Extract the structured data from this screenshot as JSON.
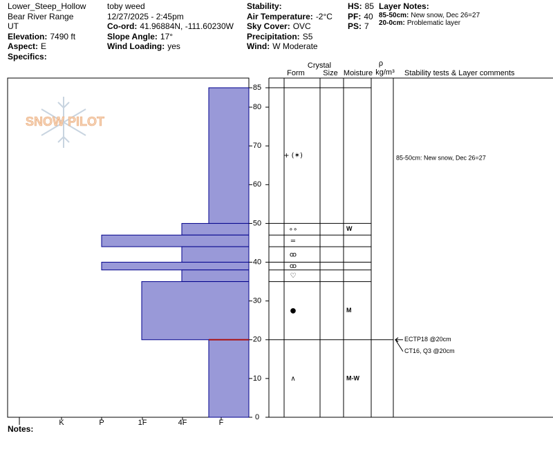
{
  "header": {
    "columns": [
      [
        {
          "value": "Lower_Steep_Hollow"
        },
        {
          "value": "Bear River Range"
        },
        {
          "value": "UT"
        },
        {
          "label": "Elevation:",
          "value": "7490 ft"
        },
        {
          "label": "Aspect:",
          "value": "E"
        },
        {
          "label": "Specifics:"
        }
      ],
      [
        {
          "value": "toby weed"
        },
        {
          "value": "12/27/2025 - 2:45pm"
        },
        {
          "label": "Co-ord:",
          "value": "41.96884N, -111.60230W"
        },
        {
          "label": "Slope Angle:",
          "value": "17°"
        },
        {
          "label": "Wind Loading:",
          "value": "yes"
        }
      ],
      [
        {
          "label": "Stability:"
        },
        {
          "label": "Air Temperature:",
          "value": "-2°C"
        },
        {
          "label": "Sky Cover:",
          "value": "OVC"
        },
        {
          "label": "Precipitation:",
          "value": "S5"
        },
        {
          "label": "Wind:",
          "value": "W Moderate"
        }
      ],
      [
        {
          "label": "HS:",
          "value": "85"
        },
        {
          "label": "PF:",
          "value": "40"
        },
        {
          "label": "PS:",
          "value": "7"
        }
      ]
    ],
    "layer_notes_title": "Layer Notes:",
    "layer_notes": [
      {
        "label": "85-50cm:",
        "value": "New snow, Dec 26=27"
      },
      {
        "label": "20-0cm:",
        "value": "Problematic layer"
      }
    ]
  },
  "chart_data": {
    "type": "snow-profile",
    "watermark": "SNOW PILOT",
    "hardness_categories": [
      "I",
      "K",
      "P",
      "1F",
      "4F",
      "F"
    ],
    "ylim": [
      0,
      87.5
    ],
    "yticks": [
      0,
      10,
      20,
      30,
      40,
      50,
      60,
      70,
      80,
      85
    ],
    "bar_color": "#9999d8",
    "columns": {
      "crystal": "Crystal",
      "form": "Form",
      "size": "Size",
      "moisture": "Moisture",
      "rho": "ρ",
      "rho_unit": "kg/m³",
      "comments": "Stability tests & Layer comments"
    },
    "layers": [
      {
        "top": 85,
        "bottom": 50,
        "hardness": "F",
        "form": "+ (✶)",
        "moisture": null,
        "comment": "85-50cm: New snow, Dec 26=27"
      },
      {
        "top": 50,
        "bottom": 47,
        "hardness": "4F",
        "form": "∘∘",
        "moisture": "W",
        "comment": null
      },
      {
        "top": 47,
        "bottom": 44,
        "hardness": "P",
        "form": "=",
        "moisture": null,
        "comment": null
      },
      {
        "top": 44,
        "bottom": 40,
        "hardness": "4F",
        "form": "ꝏ",
        "moisture": null,
        "comment": null
      },
      {
        "top": 40,
        "bottom": 38,
        "hardness": "P",
        "form": "ꝏ",
        "moisture": null,
        "comment": null
      },
      {
        "top": 38,
        "bottom": 35,
        "hardness": "4F",
        "form": "♡",
        "moisture": null,
        "comment": null
      },
      {
        "top": 35,
        "bottom": 20,
        "hardness": "1F",
        "form": "●",
        "moisture": "M",
        "comment": null
      },
      {
        "top": 20,
        "bottom": 0,
        "hardness": "F",
        "form": "∧",
        "moisture": "M-W",
        "comment": null
      }
    ],
    "critical_layer": {
      "depth": 20,
      "color": "#aa1111"
    },
    "stability_tests": [
      {
        "text": "ECTP18 @20cm",
        "depth": 20
      },
      {
        "text": "CT16, Q3 @20cm",
        "depth": 20
      }
    ],
    "notes_label": "Notes:"
  }
}
